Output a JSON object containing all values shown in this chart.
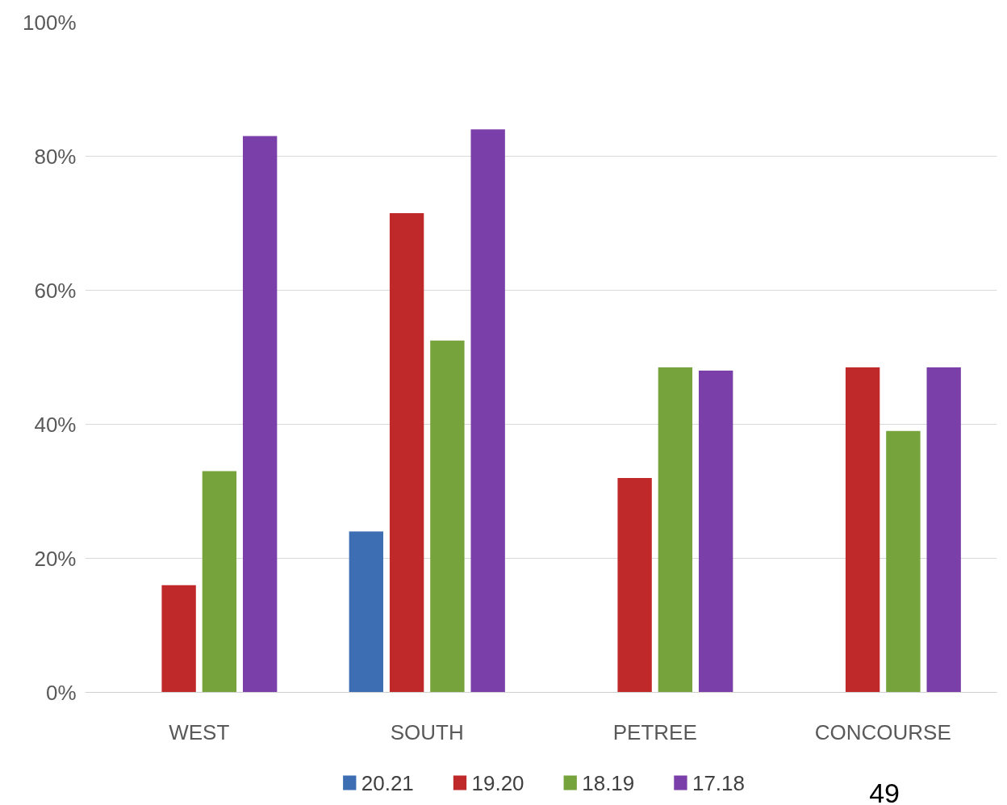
{
  "chart_data": {
    "type": "bar",
    "categories": [
      "WEST",
      "SOUTH",
      "PETREE",
      "CONCOURSE"
    ],
    "series": [
      {
        "name": "20.21",
        "color": "#3d6eb4",
        "values": [
          null,
          24,
          null,
          null
        ]
      },
      {
        "name": "19.20",
        "color": "#c0292a",
        "values": [
          16,
          71.5,
          32,
          48.5
        ]
      },
      {
        "name": "18.19",
        "color": "#77a33c",
        "values": [
          33,
          52.5,
          48.5,
          39
        ]
      },
      {
        "name": "17.18",
        "color": "#7a3fa8",
        "values": [
          83,
          84,
          48,
          48.5
        ]
      }
    ],
    "ylim": [
      0,
      100
    ],
    "yticks": [
      {
        "value": 0,
        "label": "0%"
      },
      {
        "value": 20,
        "label": "20%"
      },
      {
        "value": 40,
        "label": "40%"
      },
      {
        "value": 60,
        "label": "60%"
      },
      {
        "value": 80,
        "label": "80%"
      },
      {
        "value": 100,
        "label": "100%"
      }
    ],
    "grid": "y",
    "legend": "bottom",
    "annotations": [
      "49"
    ]
  }
}
